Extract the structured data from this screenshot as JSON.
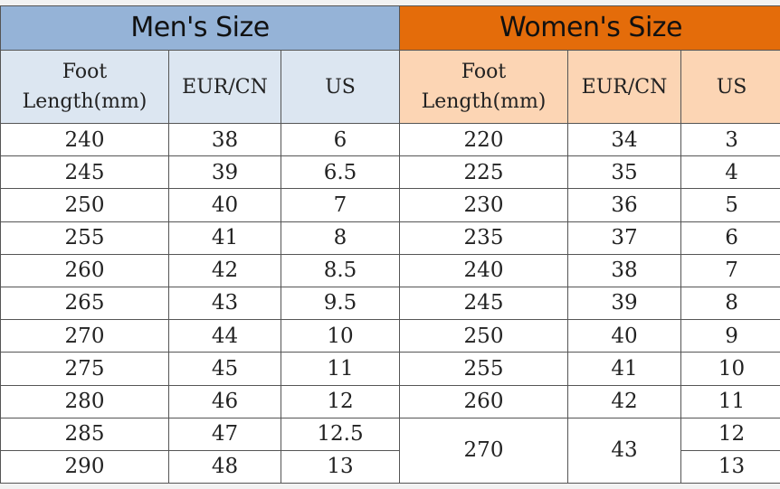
{
  "men": {
    "title": "Men's Size",
    "headers": [
      "Foot\nLength(mm)",
      "EUR/CN",
      "US"
    ],
    "rows": [
      [
        "240",
        "38",
        "6"
      ],
      [
        "245",
        "39",
        "6.5"
      ],
      [
        "250",
        "40",
        "7"
      ],
      [
        "255",
        "41",
        "8"
      ],
      [
        "260",
        "42",
        "8.5"
      ],
      [
        "265",
        "43",
        "9.5"
      ],
      [
        "270",
        "44",
        "10"
      ],
      [
        "275",
        "45",
        "11"
      ],
      [
        "280",
        "46",
        "12"
      ],
      [
        "285",
        "47",
        "12.5"
      ],
      [
        "290",
        "48",
        "13"
      ]
    ]
  },
  "women": {
    "title": "Women's Size",
    "headers": [
      "Foot\nLength(mm)",
      "EUR/CN",
      "US"
    ],
    "rows": [
      [
        "220",
        "34",
        "3"
      ],
      [
        "225",
        "35",
        "4"
      ],
      [
        "230",
        "36",
        "5"
      ],
      [
        "235",
        "37",
        "6"
      ],
      [
        "240",
        "38",
        "7"
      ],
      [
        "245",
        "39",
        "8"
      ],
      [
        "250",
        "40",
        "9"
      ],
      [
        "255",
        "41",
        "10"
      ],
      [
        "260",
        "42",
        "11"
      ],
      [
        "270",
        "43",
        "12"
      ],
      [
        "",
        "",
        "13"
      ]
    ]
  },
  "colors": {
    "men_title": "#95b3d7",
    "men_header": "#dce6f1",
    "women_title": "#e46c0a",
    "women_header": "#fcd5b4"
  }
}
